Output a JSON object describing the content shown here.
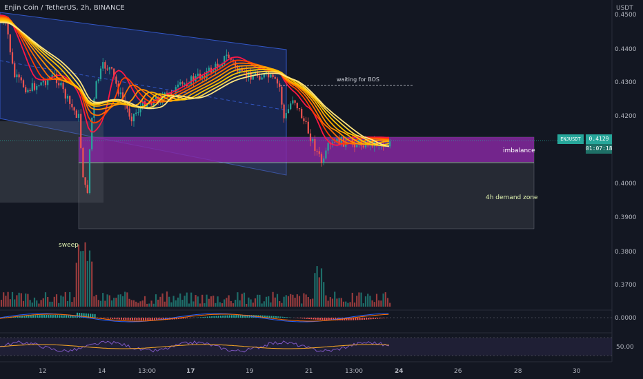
{
  "header": {
    "title": "Enjin Coin / TetherUS, 2h, BINANCE",
    "currency": "USDT"
  },
  "price_axis": {
    "ticks": [
      "0.4400",
      "0.4300",
      "0.4200",
      "0.4000",
      "0.3900",
      "0.3800",
      "0.3700"
    ],
    "top_tick": "0.4500"
  },
  "oscillator_axis": {
    "macd_tick": "0.0000",
    "rsi_tick": "50.00"
  },
  "time_axis": {
    "ticks": [
      "12",
      "14",
      "13:00",
      "17",
      "19",
      "21",
      "13:00",
      "24",
      "26",
      "28",
      "30"
    ]
  },
  "annotations": {
    "waiting": "waiting for BOS",
    "imbalance": "imbalance",
    "demand": "4h demand zone",
    "sweep": "sweep"
  },
  "last_price": {
    "symbol": "ENJUSDT",
    "price": "0.4129",
    "countdown": "01:07:18"
  },
  "colors": {
    "background": "#131722",
    "up": "#26a69a",
    "down": "#ef5350",
    "channel": "#1e3a8a",
    "imbalance": "#8e24aa",
    "demand": "#4a4d57",
    "macd": "#2962ff",
    "signal": "#ff6d00",
    "rsi": "#7e57c2"
  },
  "chart_data": {
    "type": "candlestick",
    "symbol": "ENJUSDT",
    "interval": "2h",
    "y_range": [
      0.36,
      0.45
    ],
    "zones": [
      {
        "name": "imbalance",
        "from": 0.4055,
        "to": 0.414
      },
      {
        "name": "4h demand zone",
        "from": 0.387,
        "to": 0.4055
      }
    ],
    "bos_level": 0.429,
    "last_price": 0.4129
  }
}
